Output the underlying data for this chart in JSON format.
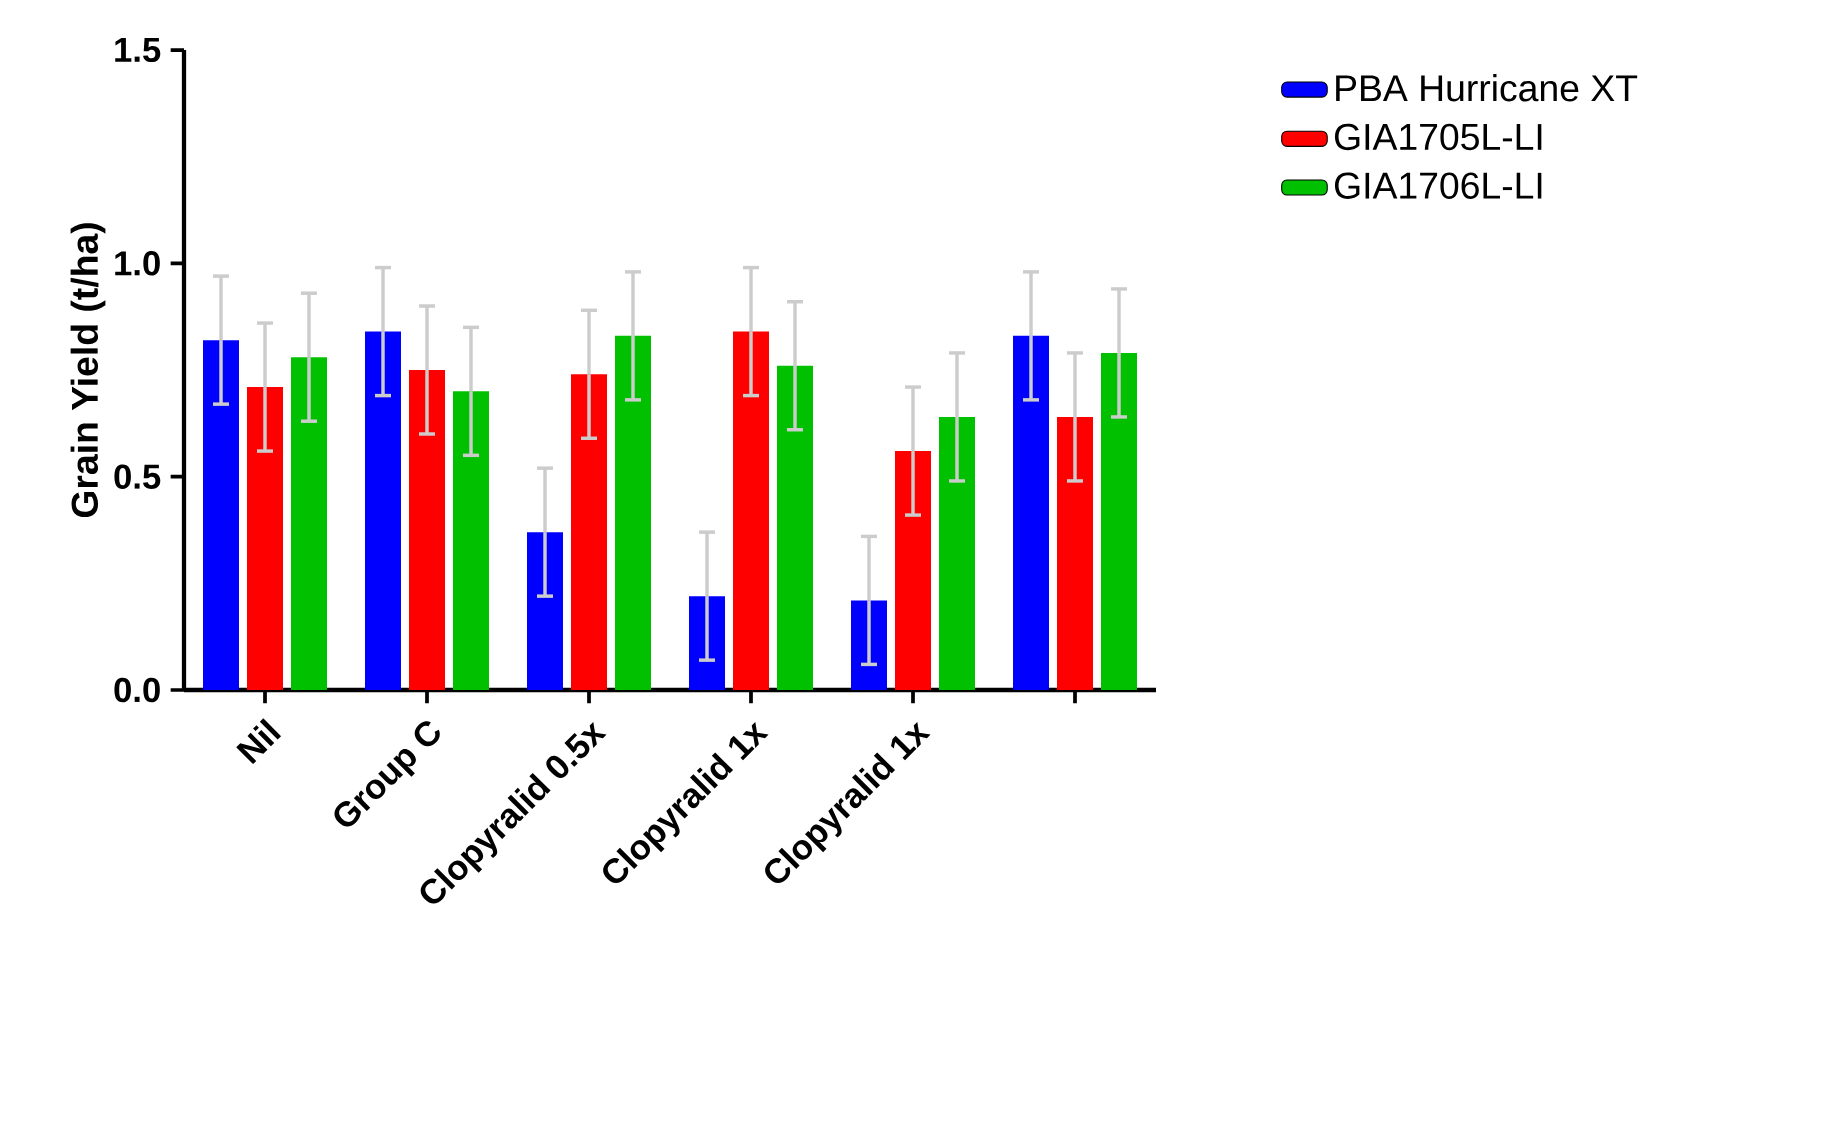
{
  "chart_data": {
    "type": "bar",
    "ylabel": "Grain Yield (t/ha)",
    "categories": [
      "Nil",
      "Group C",
      "Clopyralid 0.5x",
      "Clopyralid 1x",
      "Clopyralid 1x",
      null
    ],
    "series": [
      {
        "name": "PBA Hurricane XT",
        "color": "#0000ff",
        "values": [
          0.82,
          0.84,
          0.37,
          0.22,
          0.21,
          0.83
        ],
        "errors": [
          0.15,
          0.15,
          0.15,
          0.15,
          0.15,
          0.15
        ]
      },
      {
        "name": "GIA1705L-LI",
        "color": "#ff0000",
        "values": [
          0.71,
          0.75,
          0.74,
          0.84,
          0.56,
          0.64
        ],
        "errors": [
          0.15,
          0.15,
          0.15,
          0.15,
          0.15,
          0.15
        ]
      },
      {
        "name": "GIA1706L-LI",
        "color": "#00c000",
        "values": [
          0.78,
          0.7,
          0.83,
          0.76,
          0.64,
          0.79
        ],
        "errors": [
          0.15,
          0.15,
          0.15,
          0.15,
          0.15,
          0.15
        ]
      }
    ],
    "ylim": [
      0,
      1.5
    ],
    "yticks": [
      {
        "value": 0,
        "label": "0.0"
      },
      0.5,
      {
        "value": 1,
        "label": "1.0"
      },
      1.5
    ],
    "legend": "top right",
    "grid": false
  }
}
